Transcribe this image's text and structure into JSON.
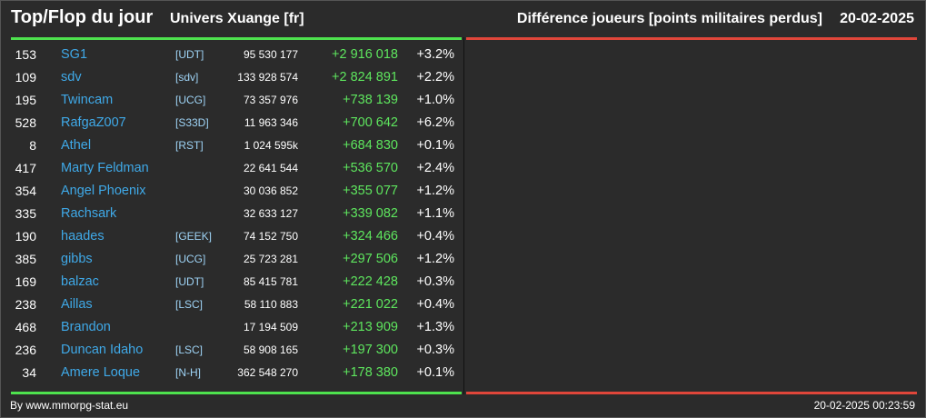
{
  "header": {
    "title": "Top/Flop du jour",
    "universe": "Univers Xuange [fr]",
    "subtitle": "Différence joueurs [points militaires perdus]",
    "date": "20-02-2025"
  },
  "colors": {
    "top_accent": "#4ee24e",
    "flop_accent": "#e0463a",
    "player_name": "#3fa9e8",
    "alliance_tag": "#9ed3f5",
    "positive_diff": "#5ee65e",
    "background": "#2b2b2b"
  },
  "rows": [
    {
      "rank": "153",
      "name": "SG1",
      "ally": "[UDT]",
      "points": "95 530 177",
      "diff": "+2 916 018",
      "pct": "+3.2%"
    },
    {
      "rank": "109",
      "name": "sdv",
      "ally": "[sdv]",
      "points": "133 928 574",
      "diff": "+2 824 891",
      "pct": "+2.2%"
    },
    {
      "rank": "195",
      "name": "Twincam",
      "ally": "[UCG]",
      "points": "73 357 976",
      "diff": "+738 139",
      "pct": "+1.0%"
    },
    {
      "rank": "528",
      "name": "RafgaZ007",
      "ally": "[S33D]",
      "points": "11 963 346",
      "diff": "+700 642",
      "pct": "+6.2%"
    },
    {
      "rank": "8",
      "name": "Athel",
      "ally": "[RST]",
      "points": "1 024 595k",
      "diff": "+684 830",
      "pct": "+0.1%"
    },
    {
      "rank": "417",
      "name": "Marty Feldman",
      "ally": "",
      "points": "22 641 544",
      "diff": "+536 570",
      "pct": "+2.4%"
    },
    {
      "rank": "354",
      "name": "Angel Phoenix",
      "ally": "",
      "points": "30 036 852",
      "diff": "+355 077",
      "pct": "+1.2%"
    },
    {
      "rank": "335",
      "name": "Rachsark",
      "ally": "",
      "points": "32 633 127",
      "diff": "+339 082",
      "pct": "+1.1%"
    },
    {
      "rank": "190",
      "name": "haades",
      "ally": "[GEEK]",
      "points": "74 152 750",
      "diff": "+324 466",
      "pct": "+0.4%"
    },
    {
      "rank": "385",
      "name": "gibbs",
      "ally": "[UCG]",
      "points": "25 723 281",
      "diff": "+297 506",
      "pct": "+1.2%"
    },
    {
      "rank": "169",
      "name": "balzac",
      "ally": "[UDT]",
      "points": "85 415 781",
      "diff": "+222 428",
      "pct": "+0.3%"
    },
    {
      "rank": "238",
      "name": "Aillas",
      "ally": "[LSC]",
      "points": "58 110 883",
      "diff": "+221 022",
      "pct": "+0.4%"
    },
    {
      "rank": "468",
      "name": "Brandon",
      "ally": "",
      "points": "17 194 509",
      "diff": "+213 909",
      "pct": "+1.3%"
    },
    {
      "rank": "236",
      "name": "Duncan Idaho",
      "ally": "[LSC]",
      "points": "58 908 165",
      "diff": "+197 300",
      "pct": "+0.3%"
    },
    {
      "rank": "34",
      "name": "Amere Loque",
      "ally": "[N-H]",
      "points": "362 548 270",
      "diff": "+178 380",
      "pct": "+0.1%"
    }
  ],
  "footer": {
    "source": "By www.mmorpg-stat.eu",
    "timestamp": "20-02-2025 00:23:59"
  }
}
